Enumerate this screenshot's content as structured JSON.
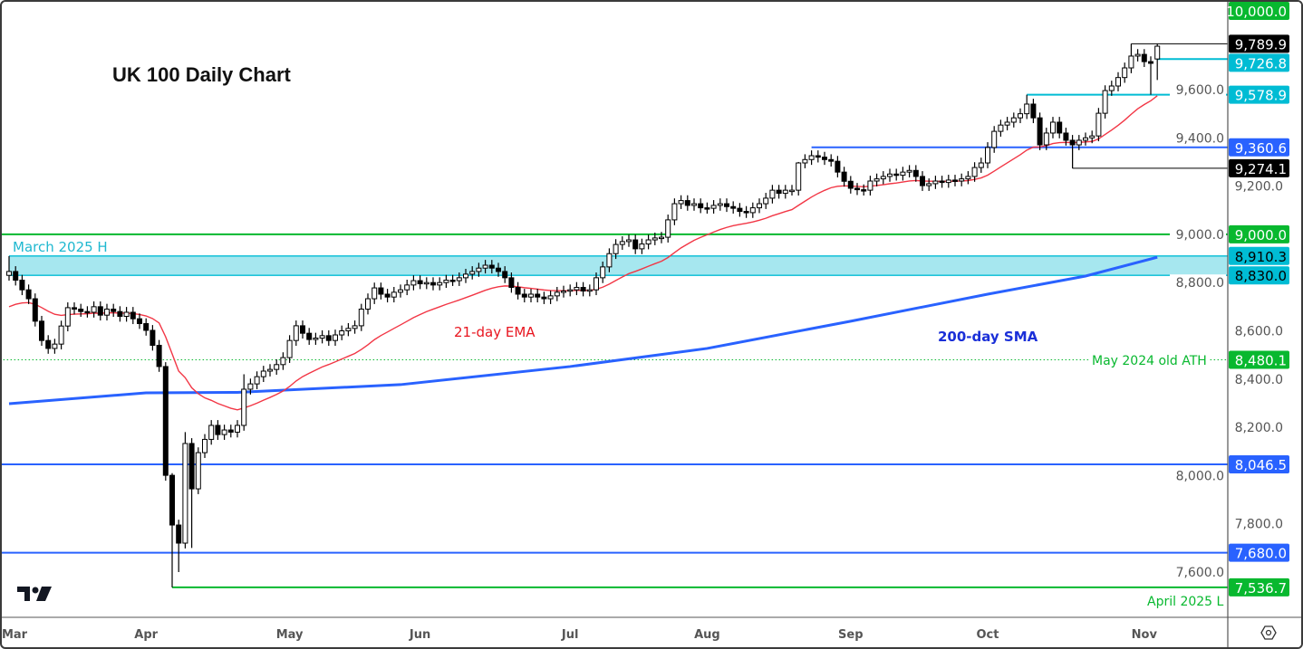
{
  "chart_data": {
    "type": "candlestick",
    "title": "UK 100 Daily Chart",
    "ylim": [
      7400,
      10000
    ],
    "y_ticks": [
      7600,
      7800,
      8000,
      8200,
      8400,
      8600,
      8800,
      9000,
      9200,
      9400,
      9600
    ],
    "x_ticks": [
      {
        "label": "Mar",
        "index": 0
      },
      {
        "label": "Apr",
        "index": 21
      },
      {
        "label": "May",
        "index": 43
      },
      {
        "label": "Jun",
        "index": 63
      },
      {
        "label": "Jul",
        "index": 86
      },
      {
        "label": "Aug",
        "index": 107
      },
      {
        "label": "Sep",
        "index": 129
      },
      {
        "label": "Oct",
        "index": 150
      },
      {
        "label": "Nov",
        "index": 174
      }
    ],
    "close": [
      8846,
      8810,
      8770,
      8733,
      8640,
      8560,
      8527,
      8545,
      8620,
      8696,
      8690,
      8680,
      8677,
      8700,
      8665,
      8690,
      8680,
      8660,
      8677,
      8650,
      8630,
      8602,
      8540,
      8452,
      8001,
      7795,
      7720,
      8133,
      7945,
      8095,
      8150,
      8208,
      8170,
      8189,
      8180,
      8208,
      8358,
      8380,
      8410,
      8433,
      8440,
      8460,
      8489,
      8560,
      8621,
      8590,
      8564,
      8570,
      8580,
      8560,
      8583,
      8600,
      8610,
      8621,
      8690,
      8733,
      8778,
      8752,
      8740,
      8760,
      8770,
      8790,
      8808,
      8795,
      8800,
      8790,
      8800,
      8810,
      8808,
      8820,
      8835,
      8846,
      8860,
      8872,
      8860,
      8846,
      8820,
      8780,
      8752,
      8740,
      8752,
      8740,
      8733,
      8745,
      8760,
      8765,
      8770,
      8780,
      8765,
      8770,
      8820,
      8865,
      8920,
      8958,
      8970,
      8977,
      8940,
      8960,
      8977,
      8985,
      8988,
      9060,
      9127,
      9140,
      9120,
      9127,
      9110,
      9108,
      9120,
      9127,
      9115,
      9108,
      9095,
      9090,
      9110,
      9127,
      9150,
      9183,
      9170,
      9183,
      9183,
      9296,
      9310,
      9326,
      9320,
      9310,
      9303,
      9258,
      9220,
      9191,
      9185,
      9183,
      9221,
      9230,
      9240,
      9250,
      9245,
      9258,
      9265,
      9240,
      9202,
      9210,
      9221,
      9215,
      9225,
      9221,
      9230,
      9240,
      9277,
      9296,
      9360,
      9427,
      9453,
      9465,
      9483,
      9500,
      9540,
      9483,
      9371,
      9420,
      9465,
      9420,
      9390,
      9371,
      9390,
      9400,
      9408,
      9502,
      9596,
      9615,
      9650,
      9690,
      9739,
      9746,
      9716,
      9709,
      9780
    ],
    "open_overrides": {
      "0": 8830,
      "176": 9727
    },
    "high_overrides": {
      "0": 8910,
      "24": 8470,
      "25": 8010,
      "27": 8180,
      "36": 8420,
      "121": 9300,
      "156": 9578.9,
      "172": 9789.9,
      "176": 9789
    },
    "low_overrides": {
      "25": 7536.7,
      "26": 7600,
      "28": 7700,
      "163": 9274.1,
      "175": 9578.9,
      "176": 9640
    },
    "sma200": [
      [
        0,
        8298
      ],
      [
        21,
        8343
      ],
      [
        35,
        8345
      ],
      [
        60,
        8377
      ],
      [
        86,
        8452
      ],
      [
        107,
        8527
      ],
      [
        129,
        8640
      ],
      [
        150,
        8752
      ],
      [
        165,
        8827
      ],
      [
        176,
        8905
      ]
    ],
    "ema_period": 21,
    "levels": [
      {
        "value": 10000.0,
        "label": "10,000.0",
        "color": "#08b82f",
        "line": false
      },
      {
        "value": 9789.9,
        "label": "9,789.9",
        "color": "#000000",
        "from_index": 172,
        "line": true
      },
      {
        "value": 9726.8,
        "label": "9,726.8",
        "color": "#00bcd4",
        "from_index": 176,
        "line": true
      },
      {
        "value": 9578.9,
        "label": "9,578.9",
        "color": "#00bcd4",
        "from_index": 156,
        "line": true
      },
      {
        "value": 9360.6,
        "label": "9,360.6",
        "color": "#2962ff",
        "from_index": 123,
        "line": true
      },
      {
        "value": 9274.1,
        "label": "9,274.1",
        "color": "#000000",
        "from_index": 163,
        "line": true
      },
      {
        "value": 9000.0,
        "label": "9,000.0",
        "color": "#08b82f",
        "from_index": -2,
        "line": true
      },
      {
        "value": 8910.3,
        "label": "8,910.3",
        "color": "#00bcd4",
        "from_index": 0,
        "line": true
      },
      {
        "value": 8830.0,
        "label": "8,830.0",
        "color": "#00bcd4",
        "from_index": 0,
        "line": true
      },
      {
        "value": 8480.1,
        "label": "8,480.1",
        "color": "#08b82f",
        "from_index": -2,
        "line": true,
        "dotted": true
      },
      {
        "value": 8046.5,
        "label": "8,046.5",
        "color": "#2962ff",
        "from_index": -2,
        "line": true
      },
      {
        "value": 7680.0,
        "label": "7,680.0",
        "color": "#2962ff",
        "from_index": -2,
        "line": true
      },
      {
        "value": 7536.7,
        "label": "7,536.7",
        "color": "#08b82f",
        "from_index": 25,
        "line": true
      }
    ],
    "zone": {
      "from": 8830.0,
      "to": 8910.3,
      "color": "#a6e7ef"
    },
    "annotations": {
      "march_high": "March 2025 H",
      "ema_label": "21-day EMA",
      "sma_label": "200-day SMA",
      "old_ath": "May 2024 old ATH",
      "april_low": "April 2025 L"
    },
    "colors": {
      "ema": "#f23645",
      "sma": "#2962ff",
      "up": "#ffffff",
      "down": "#000000"
    }
  }
}
